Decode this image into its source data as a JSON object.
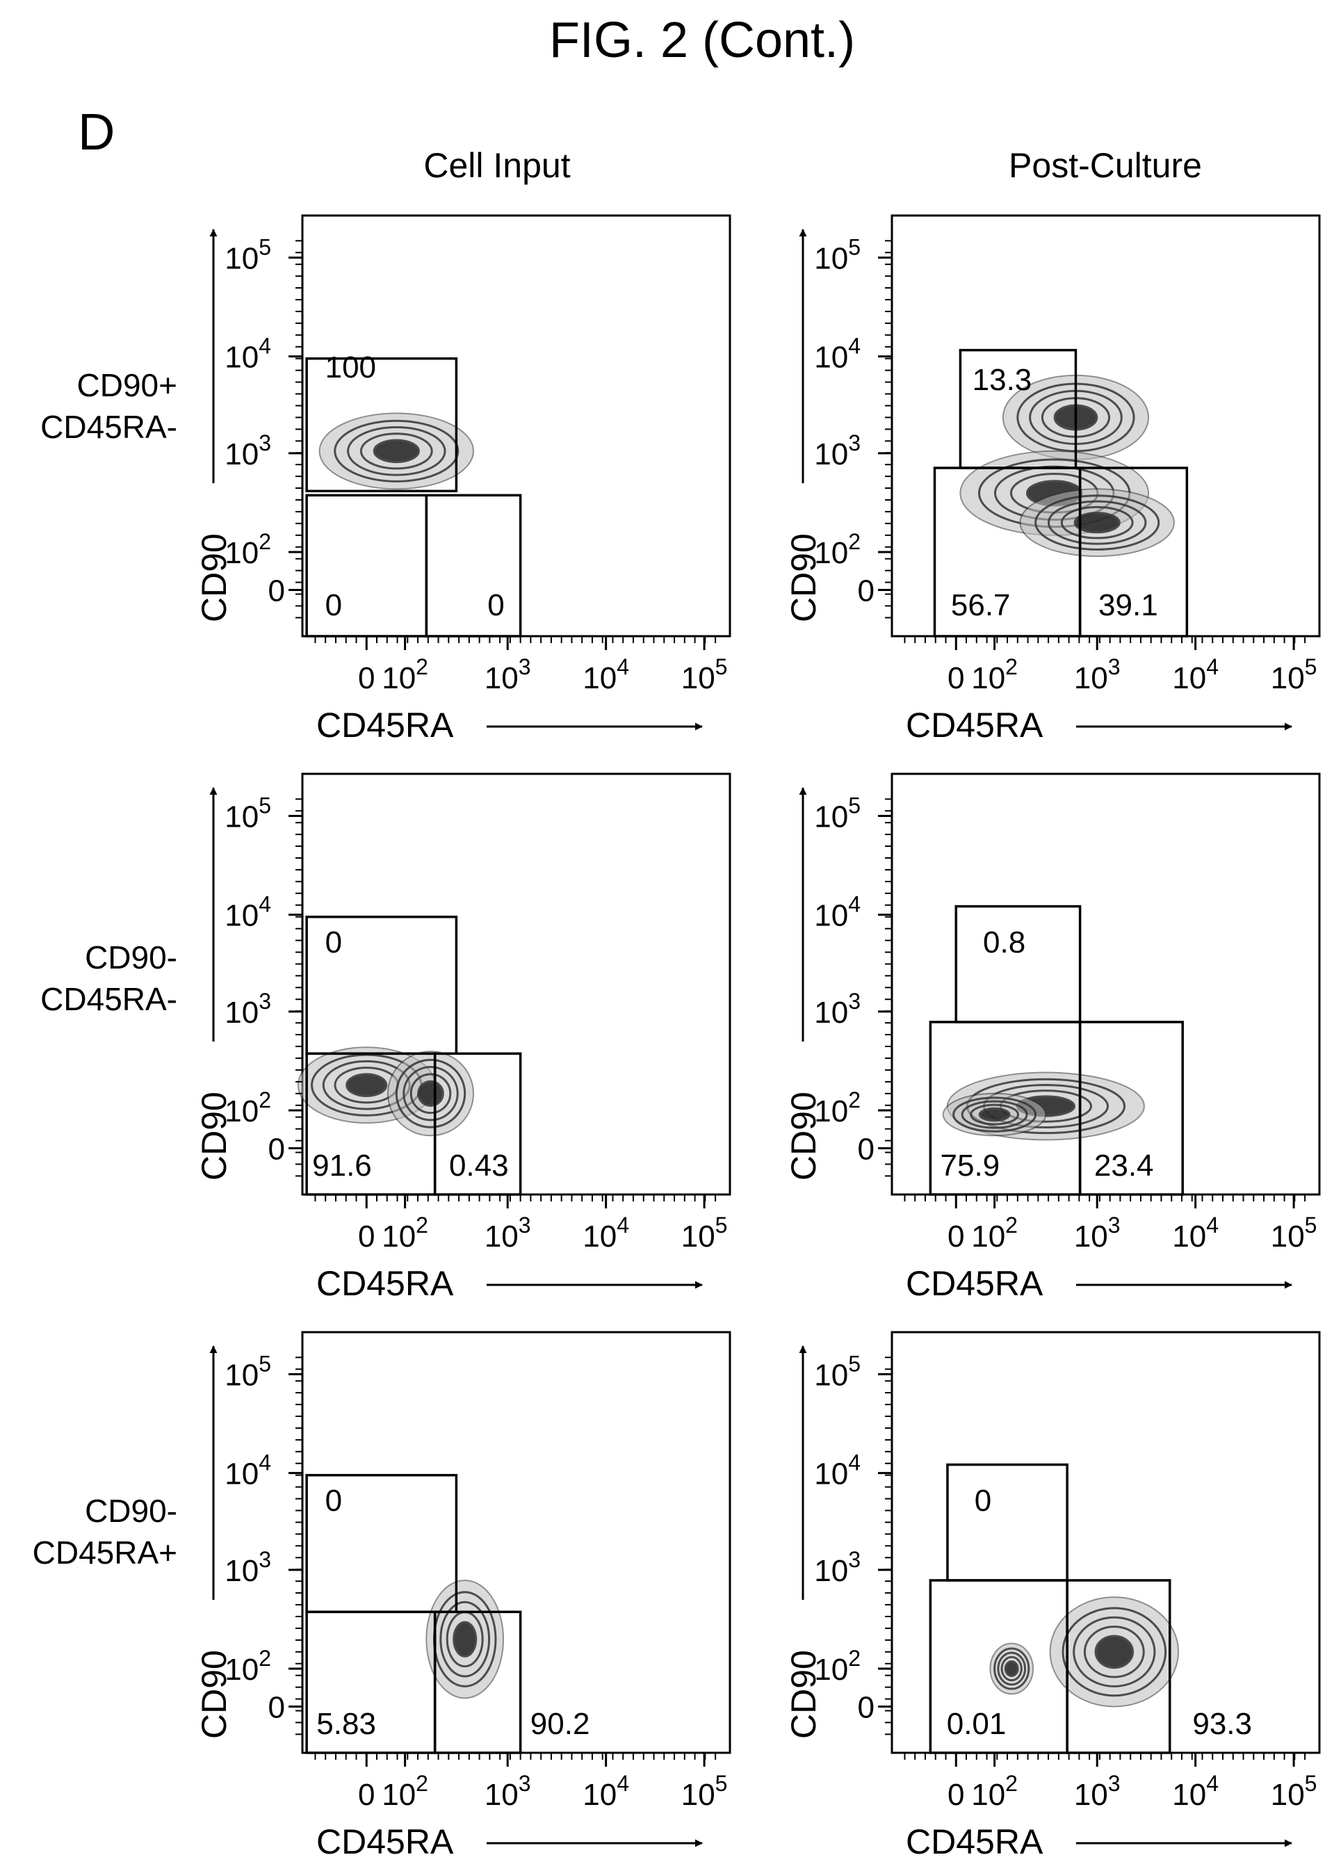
{
  "figure": {
    "title": "FIG. 2 (Cont.)",
    "panel_letter": "D",
    "column_titles": [
      "Cell Input",
      "Post-Culture"
    ],
    "row_labels": [
      [
        "CD90+",
        "CD45RA-"
      ],
      [
        "CD90-",
        "CD45RA-"
      ],
      [
        "CD90-",
        "CD45RA+"
      ]
    ]
  },
  "colors": {
    "ink": "#000000",
    "density": "#333333",
    "background": "#ffffff"
  },
  "chart_data": [
    {
      "type": "scatter",
      "subtype": "flow cytometry contour plot",
      "row_label": "CD90+ CD45RA-",
      "column": "Cell Input",
      "xlabel": "CD45RA",
      "ylabel": "CD90",
      "scale": "biexponential (log)",
      "xticks": [
        "0",
        "10^2",
        "10^3",
        "10^4",
        "10^5"
      ],
      "yticks": [
        "0",
        "10^2",
        "10^3",
        "10^4",
        "10^5"
      ],
      "gates": [
        {
          "name": "CD90+ CD45RA-",
          "percent": "100"
        },
        {
          "name": "CD90- CD45RA-",
          "percent": "0"
        },
        {
          "name": "CD90- CD45RA+",
          "percent": "0"
        }
      ]
    },
    {
      "type": "scatter",
      "subtype": "flow cytometry contour plot",
      "row_label": "CD90+ CD45RA-",
      "column": "Post-Culture",
      "xlabel": "CD45RA",
      "ylabel": "CD90",
      "scale": "biexponential (log)",
      "xticks": [
        "0",
        "10^2",
        "10^3",
        "10^4",
        "10^5"
      ],
      "yticks": [
        "0",
        "10^2",
        "10^3",
        "10^4",
        "10^5"
      ],
      "gates": [
        {
          "name": "CD90+ CD45RA-",
          "percent": "13.3"
        },
        {
          "name": "CD90- CD45RA-",
          "percent": "56.7"
        },
        {
          "name": "CD90- CD45RA+",
          "percent": "39.1"
        }
      ]
    },
    {
      "type": "scatter",
      "subtype": "flow cytometry contour plot",
      "row_label": "CD90- CD45RA-",
      "column": "Cell Input",
      "xlabel": "CD45RA",
      "ylabel": "CD90",
      "scale": "biexponential (log)",
      "xticks": [
        "0",
        "10^2",
        "10^3",
        "10^4",
        "10^5"
      ],
      "yticks": [
        "0",
        "10^2",
        "10^3",
        "10^4",
        "10^5"
      ],
      "gates": [
        {
          "name": "CD90+ CD45RA-",
          "percent": "0"
        },
        {
          "name": "CD90- CD45RA-",
          "percent": "91.6"
        },
        {
          "name": "CD90- CD45RA+",
          "percent": "0.43"
        }
      ]
    },
    {
      "type": "scatter",
      "subtype": "flow cytometry contour plot",
      "row_label": "CD90- CD45RA-",
      "column": "Post-Culture",
      "xlabel": "CD45RA",
      "ylabel": "CD90",
      "scale": "biexponential (log)",
      "xticks": [
        "0",
        "10^2",
        "10^3",
        "10^4",
        "10^5"
      ],
      "yticks": [
        "0",
        "10^2",
        "10^3",
        "10^4",
        "10^5"
      ],
      "gates": [
        {
          "name": "CD90+ CD45RA-",
          "percent": "0.8"
        },
        {
          "name": "CD90- CD45RA-",
          "percent": "75.9"
        },
        {
          "name": "CD90- CD45RA+",
          "percent": "23.4"
        }
      ]
    },
    {
      "type": "scatter",
      "subtype": "flow cytometry contour plot",
      "row_label": "CD90- CD45RA+",
      "column": "Cell Input",
      "xlabel": "CD45RA",
      "ylabel": "CD90",
      "scale": "biexponential (log)",
      "xticks": [
        "0",
        "10^2",
        "10^3",
        "10^4",
        "10^5"
      ],
      "yticks": [
        "0",
        "10^2",
        "10^3",
        "10^4",
        "10^5"
      ],
      "gates": [
        {
          "name": "CD90+ CD45RA-",
          "percent": "0"
        },
        {
          "name": "CD90- CD45RA-",
          "percent": "5.83"
        },
        {
          "name": "CD90- CD45RA+",
          "percent": "90.2"
        }
      ]
    },
    {
      "type": "scatter",
      "subtype": "flow cytometry contour plot",
      "row_label": "CD90- CD45RA+",
      "column": "Post-Culture",
      "xlabel": "CD45RA",
      "ylabel": "CD90",
      "scale": "biexponential (log)",
      "xticks": [
        "0",
        "10^2",
        "10^3",
        "10^4",
        "10^5"
      ],
      "yticks": [
        "0",
        "10^2",
        "10^3",
        "10^4",
        "10^5"
      ],
      "gates": [
        {
          "name": "CD90+ CD45RA-",
          "percent": "0"
        },
        {
          "name": "CD90- CD45RA-",
          "percent": "0.01"
        },
        {
          "name": "CD90- CD45RA+",
          "percent": "93.3"
        }
      ]
    }
  ]
}
